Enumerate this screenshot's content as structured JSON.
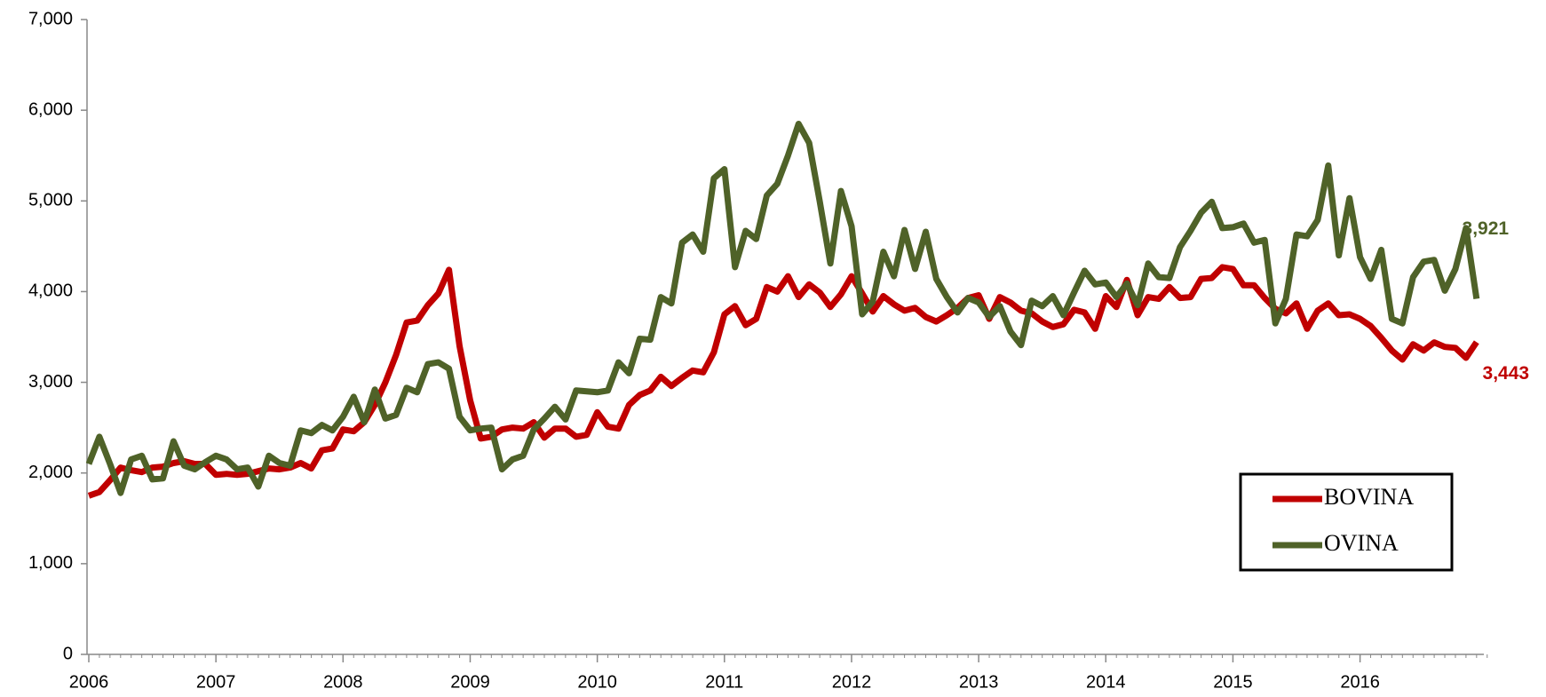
{
  "chart_data": {
    "type": "line",
    "categories": [
      "2006",
      null,
      null,
      null,
      null,
      null,
      null,
      null,
      null,
      null,
      null,
      null,
      "2007",
      null,
      null,
      null,
      null,
      null,
      null,
      null,
      null,
      null,
      null,
      null,
      "2008",
      null,
      null,
      null,
      null,
      null,
      null,
      null,
      null,
      null,
      null,
      null,
      "2009",
      null,
      null,
      null,
      null,
      null,
      null,
      null,
      null,
      null,
      null,
      null,
      "2010",
      null,
      null,
      null,
      null,
      null,
      null,
      null,
      null,
      null,
      null,
      null,
      "2011",
      null,
      null,
      null,
      null,
      null,
      null,
      null,
      null,
      null,
      null,
      null,
      "2012",
      null,
      null,
      null,
      null,
      null,
      null,
      null,
      null,
      null,
      null,
      null,
      "2013",
      null,
      null,
      null,
      null,
      null,
      null,
      null,
      null,
      null,
      null,
      null,
      "2014",
      null,
      null,
      null,
      null,
      null,
      null,
      null,
      null,
      null,
      null,
      null,
      "2015",
      null,
      null,
      null,
      null,
      null,
      null,
      null,
      null,
      null,
      null,
      null,
      "2016",
      null,
      null,
      null,
      null,
      null,
      null,
      null,
      null,
      null,
      null,
      null
    ],
    "series": [
      {
        "name": "BOVINA",
        "color": "#c00000",
        "values": [
          1750,
          1790,
          1920,
          2060,
          2030,
          2010,
          2060,
          2070,
          2110,
          2130,
          2100,
          2100,
          1980,
          1990,
          1980,
          1990,
          2020,
          2050,
          2040,
          2060,
          2110,
          2050,
          2250,
          2270,
          2480,
          2460,
          2560,
          2750,
          3000,
          3300,
          3660,
          3680,
          3850,
          3980,
          4240,
          3400,
          2800,
          2380,
          2400,
          2480,
          2500,
          2490,
          2560,
          2390,
          2490,
          2490,
          2400,
          2420,
          2670,
          2510,
          2490,
          2750,
          2860,
          2910,
          3060,
          2960,
          3050,
          3130,
          3110,
          3330,
          3750,
          3840,
          3630,
          3700,
          4050,
          4000,
          4170,
          3940,
          4080,
          3990,
          3830,
          3970,
          4170,
          3980,
          3780,
          3950,
          3860,
          3790,
          3820,
          3720,
          3670,
          3740,
          3820,
          3930,
          3960,
          3700,
          3940,
          3880,
          3790,
          3760,
          3670,
          3610,
          3640,
          3800,
          3770,
          3590,
          3950,
          3830,
          4130,
          3740,
          3940,
          3920,
          4050,
          3930,
          3940,
          4140,
          4150,
          4270,
          4250,
          4070,
          4070,
          3930,
          3810,
          3760,
          3870,
          3590,
          3790,
          3870,
          3740,
          3750,
          3700,
          3620,
          3490,
          3350,
          3250,
          3420,
          3350,
          3440,
          3390,
          3380,
          3270,
          3443
        ],
        "value_labels": [
          null,
          null,
          null,
          null,
          null,
          null,
          null,
          null,
          null,
          null,
          null,
          null,
          null,
          null,
          null,
          null,
          null,
          null,
          null,
          null,
          null,
          null,
          null,
          null,
          null,
          null,
          null,
          null,
          null,
          null,
          null,
          null,
          null,
          null,
          null,
          null,
          null,
          null,
          null,
          null,
          null,
          null,
          null,
          null,
          null,
          null,
          null,
          null,
          null,
          null,
          null,
          null,
          null,
          null,
          null,
          null,
          null,
          null,
          null,
          null,
          null,
          null,
          null,
          null,
          null,
          null,
          null,
          null,
          null,
          null,
          null,
          null,
          null,
          null,
          null,
          null,
          null,
          null,
          null,
          null,
          null,
          null,
          null,
          null,
          null,
          null,
          null,
          null,
          null,
          null,
          null,
          null,
          null,
          null,
          null,
          null,
          null,
          null,
          null,
          null,
          null,
          null,
          null,
          null,
          null,
          null,
          null,
          null,
          null,
          null,
          null,
          null,
          null,
          null,
          null,
          null,
          null,
          null,
          null,
          null,
          null,
          null,
          null,
          null,
          null,
          null,
          null,
          null,
          null,
          null,
          null,
          "3,443"
        ]
      },
      {
        "name": "OVINA",
        "color": "#4f6228",
        "values": [
          2100,
          2400,
          2100,
          1780,
          2150,
          2190,
          1930,
          1940,
          2350,
          2080,
          2040,
          2120,
          2190,
          2150,
          2040,
          2060,
          1850,
          2190,
          2110,
          2080,
          2470,
          2440,
          2530,
          2470,
          2620,
          2840,
          2560,
          2920,
          2600,
          2640,
          2940,
          2890,
          3200,
          3220,
          3150,
          2620,
          2470,
          2490,
          2500,
          2040,
          2150,
          2190,
          2480,
          2600,
          2730,
          2590,
          2910,
          2900,
          2890,
          2910,
          3220,
          3100,
          3480,
          3470,
          3940,
          3870,
          4540,
          4630,
          4440,
          5250,
          5350,
          4270,
          4670,
          4580,
          5060,
          5190,
          5500,
          5850,
          5640,
          4990,
          4310,
          5110,
          4720,
          3750,
          3890,
          4440,
          4170,
          4680,
          4250,
          4660,
          4140,
          3940,
          3770,
          3930,
          3880,
          3720,
          3840,
          3560,
          3410,
          3900,
          3840,
          3950,
          3740,
          3990,
          4230,
          4080,
          4100,
          3940,
          4090,
          3850,
          4310,
          4160,
          4150,
          4490,
          4670,
          4870,
          4990,
          4700,
          4710,
          4750,
          4540,
          4570,
          3650,
          3920,
          4630,
          4610,
          4790,
          5390,
          4400,
          5030,
          4380,
          4140,
          4460,
          3700,
          3650,
          4160,
          4330,
          4350,
          4010,
          4250,
          4700,
          3921
        ],
        "value_labels": [
          null,
          null,
          null,
          null,
          null,
          null,
          null,
          null,
          null,
          null,
          null,
          null,
          null,
          null,
          null,
          null,
          null,
          null,
          null,
          null,
          null,
          null,
          null,
          null,
          null,
          null,
          null,
          null,
          null,
          null,
          null,
          null,
          null,
          null,
          null,
          null,
          null,
          null,
          null,
          null,
          null,
          null,
          null,
          null,
          null,
          null,
          null,
          null,
          null,
          null,
          null,
          null,
          null,
          null,
          null,
          null,
          null,
          null,
          null,
          null,
          null,
          null,
          null,
          null,
          null,
          null,
          null,
          null,
          null,
          null,
          null,
          null,
          null,
          null,
          null,
          null,
          null,
          null,
          null,
          null,
          null,
          null,
          null,
          null,
          null,
          null,
          null,
          null,
          null,
          null,
          null,
          null,
          null,
          null,
          null,
          null,
          null,
          null,
          null,
          null,
          null,
          null,
          null,
          null,
          null,
          null,
          null,
          null,
          null,
          null,
          null,
          null,
          null,
          null,
          null,
          null,
          null,
          null,
          null,
          null,
          null,
          null,
          null,
          null,
          null,
          null,
          null,
          null,
          null,
          null,
          null,
          "3,921"
        ]
      }
    ],
    "ylim": [
      0,
      7000
    ],
    "yticks": [
      0,
      {
        "value": 1000,
        "label": "1,000"
      },
      {
        "value": 2000,
        "label": "2,000"
      },
      {
        "value": 3000,
        "label": "3,000"
      },
      {
        "value": 4000,
        "label": "4,000"
      },
      {
        "value": 5000,
        "label": "5,000"
      },
      {
        "value": 6000,
        "label": "6,000"
      },
      {
        "value": 7000,
        "label": "7,000"
      }
    ],
    "legend": "lower right",
    "grid": false
  }
}
